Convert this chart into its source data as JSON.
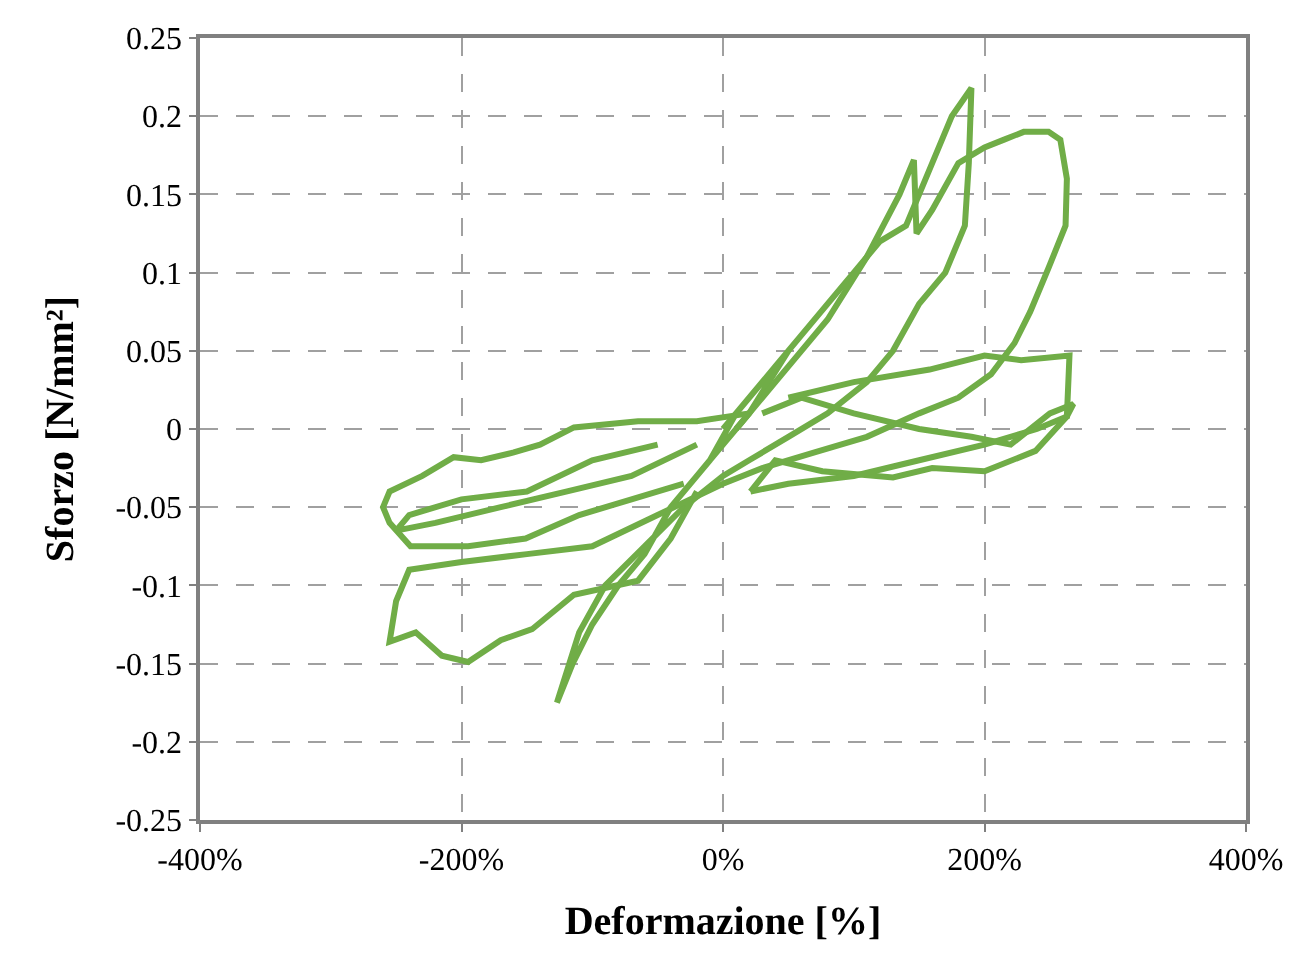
{
  "chart_data": {
    "type": "line",
    "xlabel": "Deformazione [%]",
    "ylabel": "Sforzo [N/mm²]",
    "xlim": [
      -400,
      400
    ],
    "ylim": [
      -0.25,
      0.25
    ],
    "xticks": [
      {
        "value": -400,
        "label": "-400%"
      },
      {
        "value": -200,
        "label": "-200%"
      },
      {
        "value": 0,
        "label": "0%"
      },
      {
        "value": 200,
        "label": "200%"
      },
      {
        "value": 400,
        "label": "400%"
      }
    ],
    "yticks": [
      -0.25,
      -0.2,
      -0.15,
      -0.1,
      -0.05,
      0,
      0.05,
      0.1,
      0.15,
      0.2,
      0.25
    ],
    "grid": true,
    "series": [
      {
        "color": "#70ad47",
        "x": [
          0,
          20,
          40,
          60,
          50,
          20,
          0,
          -20,
          -40,
          -30,
          -10,
          10,
          30,
          60,
          80,
          100,
          120,
          140,
          150,
          160,
          175,
          190,
          188,
          185,
          170,
          150,
          130,
          110,
          80,
          50,
          20,
          0,
          -30,
          -60,
          -90,
          -110,
          -127,
          -115,
          -100,
          -80,
          -60,
          -40,
          -20
        ],
        "values": [
          0,
          0.02,
          0.04,
          0.06,
          0.05,
          0.01,
          -0.01,
          -0.03,
          -0.05,
          -0.04,
          -0.02,
          0.01,
          0.03,
          0.06,
          0.08,
          0.1,
          0.12,
          0.13,
          0.15,
          0.17,
          0.2,
          0.218,
          0.17,
          0.13,
          0.1,
          0.08,
          0.05,
          0.03,
          0.01,
          -0.005,
          -0.02,
          -0.03,
          -0.05,
          -0.075,
          -0.1,
          -0.13,
          -0.175,
          -0.15,
          -0.125,
          -0.1,
          -0.08,
          -0.05,
          -0.03
        ]
      },
      {
        "color": "#70ad47",
        "x": [
          10,
          40,
          80,
          110,
          135,
          146,
          148,
          160,
          180,
          200,
          215,
          230,
          249,
          258,
          263,
          262,
          249,
          235,
          223,
          205,
          180,
          150,
          110,
          70,
          30,
          0,
          -50,
          -100,
          -150,
          -200,
          -240,
          -250,
          -255,
          -235,
          -215,
          -195,
          -170,
          -146,
          -114,
          -65,
          -40,
          -20
        ],
        "values": [
          0,
          0.03,
          0.07,
          0.11,
          0.15,
          0.172,
          0.125,
          0.14,
          0.17,
          0.18,
          0.185,
          0.19,
          0.19,
          0.185,
          0.16,
          0.13,
          0.103,
          0.075,
          0.055,
          0.035,
          0.02,
          0.01,
          -0.005,
          -0.015,
          -0.025,
          -0.035,
          -0.055,
          -0.075,
          -0.08,
          -0.085,
          -0.09,
          -0.11,
          -0.136,
          -0.13,
          -0.145,
          -0.149,
          -0.135,
          -0.128,
          -0.106,
          -0.097,
          -0.07,
          -0.04
        ]
      },
      {
        "color": "#70ad47",
        "x": [
          20,
          -20,
          -65,
          -114,
          -140,
          -160,
          -185,
          -206,
          -230,
          -255,
          -260,
          -255,
          -239,
          -195,
          -151,
          -110,
          -70,
          -30
        ],
        "values": [
          0.01,
          0.005,
          0.005,
          0.001,
          -0.01,
          -0.015,
          -0.02,
          -0.018,
          -0.03,
          -0.04,
          -0.05,
          -0.06,
          -0.075,
          -0.075,
          -0.07,
          -0.055,
          -0.045,
          -0.035
        ]
      },
      {
        "color": "#70ad47",
        "x": [
          21,
          40,
          76,
          130,
          160,
          200,
          239,
          263,
          268,
          250,
          220,
          190,
          150,
          100,
          60,
          30
        ],
        "values": [
          -0.04,
          -0.02,
          -0.027,
          -0.031,
          -0.025,
          -0.027,
          -0.014,
          0.008,
          0.016,
          0.01,
          -0.01,
          -0.005,
          0,
          0.01,
          0.02,
          0.01
        ]
      },
      {
        "color": "#70ad47",
        "x": [
          50,
          100,
          158,
          200,
          228,
          265,
          263,
          240,
          200,
          150,
          100,
          50,
          21
        ],
        "values": [
          0.02,
          0.03,
          0.038,
          0.047,
          0.044,
          0.047,
          0.008,
          0,
          -0.01,
          -0.02,
          -0.03,
          -0.035,
          -0.04
        ]
      },
      {
        "color": "#70ad47",
        "x": [
          -50,
          -100,
          -150,
          -200,
          -240,
          -250,
          -220,
          -170,
          -120,
          -70,
          -20
        ],
        "values": [
          -0.01,
          -0.02,
          -0.04,
          -0.045,
          -0.055,
          -0.065,
          -0.06,
          -0.05,
          -0.04,
          -0.03,
          -0.01
        ]
      }
    ]
  }
}
